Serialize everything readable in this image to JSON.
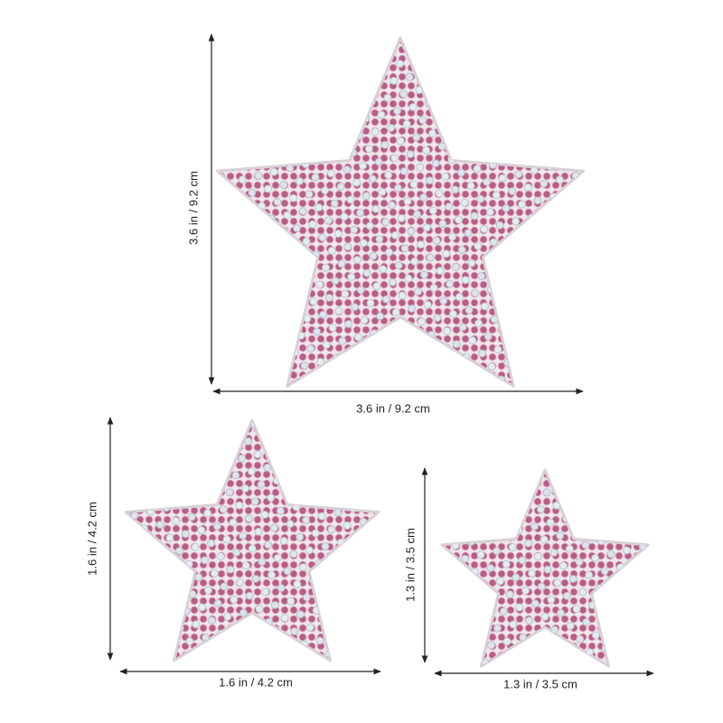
{
  "stars": [
    {
      "height_label": "3.6 in / 9.2 cm",
      "width_label": "3.6 in / 9.2 cm"
    },
    {
      "height_label": "1.6 in / 4.2 cm",
      "width_label": "1.6 in / 4.2 cm"
    },
    {
      "height_label": "1.3 in / 3.5 cm",
      "width_label": "1.3 in / 3.5 cm"
    }
  ]
}
